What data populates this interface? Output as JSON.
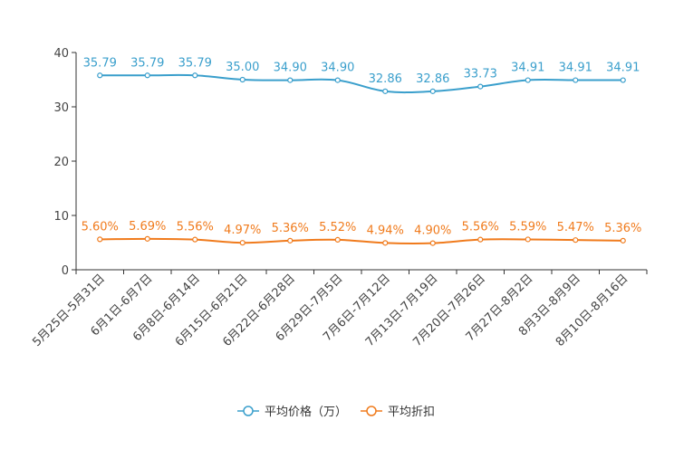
{
  "chart_data": {
    "type": "line",
    "categories": [
      "5月25日-5月31日",
      "6月1日-6月7日",
      "6月8日-6月14日",
      "6月15日-6月21日",
      "6月22日-6月28日",
      "6月29日-7月5日",
      "7月6日-7月12日",
      "7月13日-7月19日",
      "7月20日-7月26日",
      "7月27日-8月2日",
      "8月3日-8月9日",
      "8月10日-8月16日"
    ],
    "ylim": [
      0,
      40
    ],
    "yticks": [
      0,
      10,
      20,
      30,
      40
    ],
    "series": [
      {
        "name": "平均价格（万）",
        "color": "#3a9fcc",
        "values": [
          35.79,
          35.79,
          35.79,
          35.0,
          34.9,
          34.9,
          32.86,
          32.86,
          33.73,
          34.91,
          34.91,
          34.91
        ],
        "labels": [
          "35.79",
          "35.79",
          "35.79",
          "35.00",
          "34.90",
          "34.90",
          "32.86",
          "32.86",
          "33.73",
          "34.91",
          "34.91",
          "34.91"
        ]
      },
      {
        "name": "平均折扣",
        "color": "#f07b1d",
        "values": [
          5.6,
          5.69,
          5.56,
          4.97,
          5.36,
          5.52,
          4.94,
          4.9,
          5.56,
          5.59,
          5.47,
          5.36
        ],
        "labels": [
          "5.60%",
          "5.69%",
          "5.56%",
          "4.97%",
          "5.36%",
          "5.52%",
          "4.94%",
          "4.90%",
          "5.56%",
          "5.59%",
          "5.47%",
          "5.36%"
        ]
      }
    ],
    "legend_position": "bottom-center"
  }
}
